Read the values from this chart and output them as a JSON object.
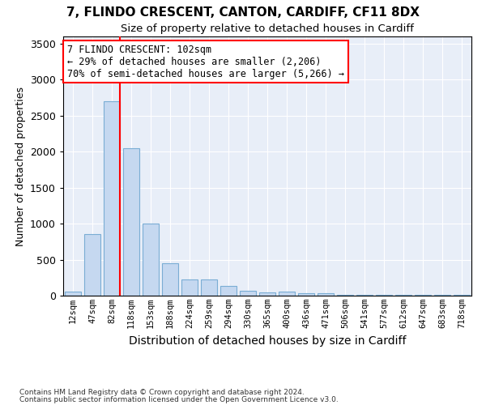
{
  "title1": "7, FLINDO CRESCENT, CANTON, CARDIFF, CF11 8DX",
  "title2": "Size of property relative to detached houses in Cardiff",
  "xlabel": "Distribution of detached houses by size in Cardiff",
  "ylabel": "Number of detached properties",
  "bar_labels": [
    "12sqm",
    "47sqm",
    "82sqm",
    "118sqm",
    "153sqm",
    "188sqm",
    "224sqm",
    "259sqm",
    "294sqm",
    "330sqm",
    "365sqm",
    "400sqm",
    "436sqm",
    "471sqm",
    "506sqm",
    "541sqm",
    "577sqm",
    "612sqm",
    "647sqm",
    "683sqm",
    "718sqm"
  ],
  "bar_values": [
    60,
    850,
    2700,
    2050,
    1000,
    450,
    230,
    220,
    130,
    65,
    50,
    55,
    30,
    30,
    15,
    8,
    8,
    8,
    8,
    8,
    8
  ],
  "bar_color": "#c5d8f0",
  "bar_edge_color": "#7aadd4",
  "ylim": [
    0,
    3600
  ],
  "yticks": [
    0,
    500,
    1000,
    1500,
    2000,
    2500,
    3000,
    3500
  ],
  "vline_color": "red",
  "annotation_text": "7 FLINDO CRESCENT: 102sqm\n← 29% of detached houses are smaller (2,206)\n70% of semi-detached houses are larger (5,266) →",
  "annotation_box_color": "white",
  "annotation_box_edgecolor": "red",
  "footnote1": "Contains HM Land Registry data © Crown copyright and database right 2024.",
  "footnote2": "Contains public sector information licensed under the Open Government Licence v3.0.",
  "bg_color": "#e8eef8",
  "grid_color": "white",
  "title1_fontsize": 11,
  "title2_fontsize": 9.5
}
